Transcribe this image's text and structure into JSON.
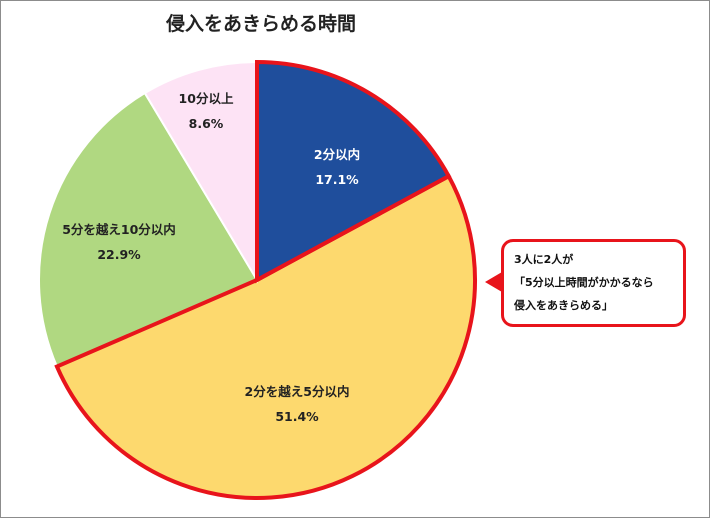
{
  "chart_data": {
    "type": "pie",
    "title": "侵入をあきらめる時間",
    "start": "12 o'clock",
    "direction": "clockwise",
    "slices": [
      {
        "label": "2分以内",
        "value": 17.1,
        "value_label": "17.1%",
        "color": "#1f4e9c",
        "text_color": "#ffffff"
      },
      {
        "label": "2分を越え5分以内",
        "value": 51.4,
        "value_label": "51.4%",
        "color": "#fdd96e",
        "text_color": "#222222",
        "highlight": true
      },
      {
        "label": "5分を越え10分以内",
        "value": 22.9,
        "value_label": "22.9%",
        "color": "#b0d881",
        "text_color": "#222222"
      },
      {
        "label": "10分以上",
        "value": 8.6,
        "value_label": "8.6%",
        "color": "#fde3f5",
        "text_color": "#222222"
      }
    ],
    "highlight_color": "#e8141b"
  },
  "callout": {
    "lines": [
      "3人に2人が",
      "「5分以上時間がかかるなら",
      "侵入をあきらめる」"
    ]
  }
}
